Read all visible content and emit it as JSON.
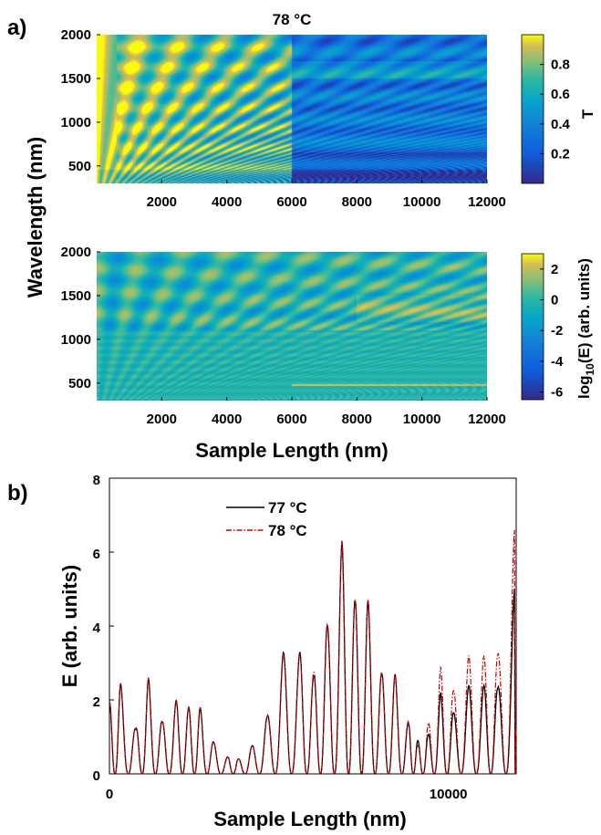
{
  "panel_labels": {
    "a": "a)",
    "b": "b)"
  },
  "colors": {
    "line_77": "#000000",
    "line_78": "#cc0000"
  },
  "chart_data": [
    {
      "type": "heatmap",
      "name": "transmission",
      "title": "78 °C",
      "xlim": [
        0,
        12000
      ],
      "ylim": [
        300,
        2000
      ],
      "x_ticks": [
        2000,
        4000,
        6000,
        8000,
        10000,
        12000
      ],
      "y_ticks": [
        500,
        1000,
        1500,
        2000
      ],
      "colorbar": {
        "label": "T",
        "ticks": [
          0.2,
          0.4,
          0.6,
          0.8
        ],
        "range": [
          0,
          1
        ],
        "colormap": "parula"
      },
      "notes": "Interference fringe pattern; sharp change at ~6000 nm"
    },
    {
      "type": "heatmap",
      "name": "field",
      "xlim": [
        0,
        12000
      ],
      "ylim": [
        300,
        2000
      ],
      "x_ticks": [
        2000,
        4000,
        6000,
        8000,
        10000,
        12000
      ],
      "y_ticks": [
        500,
        1000,
        1500,
        2000
      ],
      "colorbar": {
        "label_base": "log",
        "label_sub": "10",
        "label_rest": "(E) (arb. units)",
        "ticks": [
          2,
          0,
          -2,
          -4,
          -6
        ],
        "range": [
          -6.5,
          3
        ],
        "colormap": "parula"
      }
    },
    {
      "type": "line",
      "shared_xlabel": "Sample Length (nm)",
      "shared_ylabel": "Wavelength (nm)"
    },
    {
      "type": "line",
      "name": "field-vs-length",
      "xlabel": "Sample Length (nm)",
      "ylabel": "E (arb. units)",
      "xlim": [
        0,
        12000
      ],
      "ylim": [
        0,
        8
      ],
      "x_ticks": [
        0,
        10000
      ],
      "y_ticks": [
        0,
        2,
        4,
        6,
        8
      ],
      "legend_position": "top-left",
      "peaks_x": [
        0,
        330,
        780,
        1150,
        1560,
        1970,
        2340,
        2680,
        3080,
        3500,
        3800,
        4200,
        4650,
        5130,
        5620,
        6030,
        6420,
        6860,
        7250,
        7630,
        8040,
        8430,
        8830,
        9100,
        9400,
        9770,
        10150,
        10600,
        11050,
        11450,
        11950,
        12000
      ],
      "series": [
        {
          "name": "77 °C",
          "style": "solid",
          "peaks_y": [
            1.95,
            2.45,
            1.2,
            2.6,
            1.4,
            2.0,
            1.8,
            1.8,
            0.85,
            0.45,
            0.4,
            0.75,
            1.55,
            3.3,
            3.3,
            2.65,
            4.0,
            6.3,
            4.7,
            4.7,
            2.7,
            2.7,
            1.35,
            0.9,
            1.05,
            2.2,
            1.65,
            2.4,
            2.4,
            2.3,
            5.0,
            0.8
          ]
        },
        {
          "name": "78 °C",
          "style": "dash-dot",
          "peaks_y": [
            1.95,
            2.45,
            1.2,
            2.6,
            1.4,
            2.0,
            1.8,
            1.8,
            0.85,
            0.45,
            0.4,
            0.75,
            1.55,
            3.25,
            3.25,
            2.75,
            4.05,
            6.3,
            4.7,
            4.7,
            2.7,
            2.7,
            1.4,
            0.75,
            1.35,
            2.9,
            2.25,
            3.2,
            3.2,
            3.2,
            6.6,
            0.8
          ]
        }
      ]
    }
  ]
}
